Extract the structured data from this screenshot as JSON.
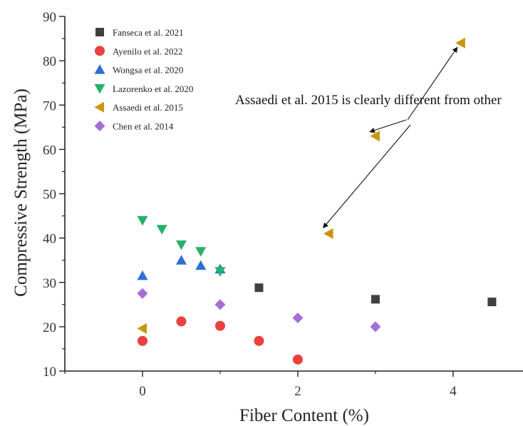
{
  "chart_data": {
    "type": "scatter",
    "title": "",
    "xlabel": "Fiber Content (%)",
    "ylabel": "Compressive Strength (MPa)",
    "xlim": [
      -1,
      4.9
    ],
    "ylim": [
      10,
      90
    ],
    "xticks": [
      0,
      2,
      4
    ],
    "yticks": [
      10,
      20,
      30,
      40,
      50,
      60,
      70,
      80,
      90
    ],
    "grid": false,
    "legend_position": "top-left",
    "series": [
      {
        "name": "Fanseca et al. 2021",
        "marker": "square",
        "color": "#404040",
        "x": [
          1.5,
          3,
          4.5
        ],
        "y": [
          28.8,
          26.2,
          25.6
        ]
      },
      {
        "name": "Ayenilo et al. 2022",
        "marker": "circle",
        "color": "#e8413f",
        "x": [
          0,
          0.5,
          1,
          1.5,
          2
        ],
        "y": [
          16.8,
          21.2,
          20.2,
          16.8,
          12.6
        ]
      },
      {
        "name": "Wongsa et al. 2020",
        "marker": "triangle-up",
        "color": "#2f6fd6",
        "x": [
          0,
          0.5,
          0.75,
          1
        ],
        "y": [
          31.5,
          35,
          33.8,
          33
        ]
      },
      {
        "name": "Lazorenko et al. 2020",
        "marker": "triangle-down",
        "color": "#26b06e",
        "x": [
          0,
          0.25,
          0.5,
          0.75,
          1
        ],
        "y": [
          44,
          42,
          38.5,
          37,
          32.5
        ]
      },
      {
        "name": "Assaedi et al. 2015",
        "marker": "triangle-left",
        "color": "#c9960c",
        "x": [
          0,
          2.4,
          3,
          4.1
        ],
        "y": [
          19.6,
          41,
          63,
          84
        ]
      },
      {
        "name": "Chen et al. 2014",
        "marker": "diamond",
        "color": "#a56fd8",
        "x": [
          0,
          1,
          2,
          3
        ],
        "y": [
          27.5,
          25,
          22,
          20
        ]
      }
    ],
    "annotation": {
      "text": "Assaedi et al. 2015  is clearly different from other",
      "arrow_targets": [
        [
          4.1,
          84
        ],
        [
          3,
          63
        ],
        [
          2.4,
          41
        ]
      ]
    }
  }
}
